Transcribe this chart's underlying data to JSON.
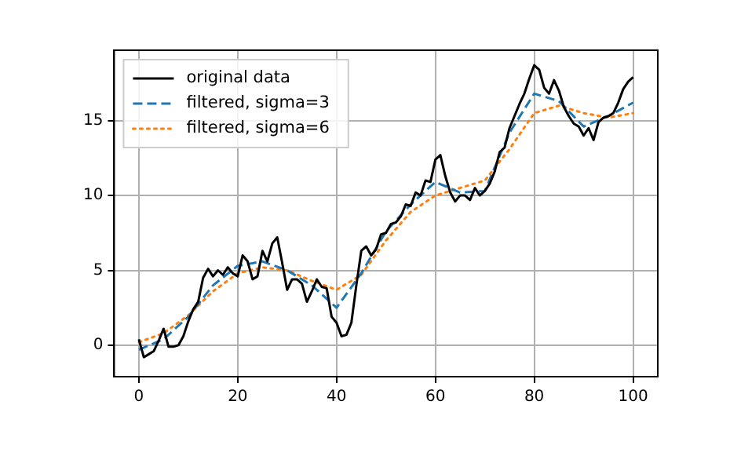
{
  "chart_data": {
    "type": "line",
    "xlim": [
      -5,
      105
    ],
    "ylim": [
      -2.1,
      19.7
    ],
    "xticks": [
      0,
      20,
      40,
      60,
      80,
      100
    ],
    "yticks": [
      0,
      5,
      10,
      15
    ],
    "grid": true,
    "legend": "top left",
    "marker": "none",
    "series": [
      {
        "name": "original data",
        "color": "#000000",
        "line_style": "solid",
        "x": [
          0,
          1,
          2,
          3,
          4,
          5,
          6,
          7,
          8,
          9,
          10,
          11,
          12,
          13,
          14,
          15,
          16,
          17,
          18,
          19,
          20,
          21,
          22,
          23,
          24,
          25,
          26,
          27,
          28,
          29,
          30,
          31,
          32,
          33,
          34,
          35,
          36,
          37,
          38,
          39,
          40,
          41,
          42,
          43,
          44,
          45,
          46,
          47,
          48,
          49,
          50,
          51,
          52,
          53,
          54,
          55,
          56,
          57,
          58,
          59,
          60,
          61,
          62,
          63,
          64,
          65,
          66,
          67,
          68,
          69,
          70,
          71,
          72,
          73,
          74,
          75,
          76,
          77,
          78,
          79,
          80,
          81,
          82,
          83,
          84,
          85,
          86,
          87,
          88,
          89,
          90,
          91,
          92,
          93,
          94,
          95,
          96,
          97,
          98,
          99,
          100
        ],
        "values": [
          0.4,
          -0.8,
          -0.6,
          -0.4,
          0.3,
          1.1,
          -0.1,
          -0.1,
          0,
          0.6,
          1.6,
          2.4,
          2.9,
          4.5,
          5.1,
          4.6,
          5.0,
          4.7,
          5.2,
          4.8,
          4.6,
          6.0,
          5.6,
          4.4,
          4.6,
          6.3,
          5.6,
          6.8,
          7.2,
          5.5,
          3.7,
          4.4,
          4.4,
          4.1,
          2.9,
          3.6,
          4.4,
          3.9,
          3.8,
          1.9,
          1.5,
          0.6,
          0.7,
          1.5,
          4.0,
          6.3,
          6.6,
          6.0,
          6.4,
          7.4,
          7.5,
          8.1,
          8.2,
          8.6,
          9.4,
          9.3,
          10.2,
          10.0,
          11.0,
          10.9,
          12.4,
          12.7,
          11.3,
          10.2,
          9.6,
          10.0,
          10.0,
          9.7,
          10.5,
          10.0,
          10.3,
          10.8,
          11.6,
          12.9,
          13.2,
          14.5,
          15.3,
          16.1,
          16.8,
          17.8,
          18.7,
          18.4,
          17.2,
          16.8,
          17.7,
          17.0,
          15.9,
          15.3,
          14.8,
          14.6,
          14.0,
          14.5,
          13.7,
          14.9,
          15.2,
          15.3,
          15.5,
          16.2,
          17.1,
          17.6,
          17.9
        ]
      },
      {
        "name": "filtered, sigma=3",
        "color": "#1f77b4",
        "line_style": "dashed",
        "x": [
          0,
          5,
          10,
          15,
          20,
          25,
          30,
          35,
          40,
          45,
          50,
          55,
          60,
          65,
          70,
          75,
          80,
          85,
          90,
          95,
          100
        ],
        "values": [
          -0.3,
          0.4,
          1.9,
          4.0,
          5.3,
          5.6,
          5.0,
          4.0,
          2.5,
          4.8,
          7.6,
          9.4,
          10.9,
          10.2,
          10.3,
          14.2,
          16.8,
          16.3,
          14.6,
          15.3,
          16.2
        ]
      },
      {
        "name": "filtered, sigma=6",
        "color": "#ff7f0e",
        "line_style": "dotted",
        "x": [
          0,
          5,
          10,
          15,
          20,
          25,
          30,
          35,
          40,
          45,
          50,
          55,
          60,
          65,
          70,
          75,
          80,
          85,
          90,
          95,
          100
        ],
        "values": [
          0.2,
          0.8,
          2.0,
          3.6,
          4.8,
          5.2,
          5.0,
          4.3,
          3.7,
          4.7,
          7.0,
          8.9,
          10.0,
          10.5,
          11.0,
          13.1,
          15.5,
          16.0,
          15.5,
          15.2,
          15.5
        ]
      }
    ]
  }
}
